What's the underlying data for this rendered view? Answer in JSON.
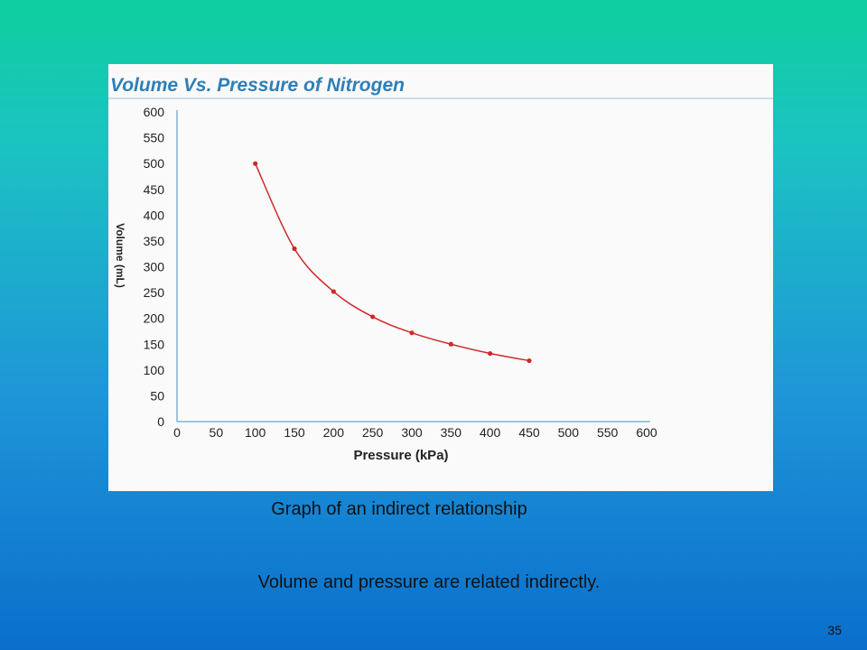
{
  "slide": {
    "caption": "Graph of an indirect relationship",
    "statement": "Volume and pressure are related indirectly.",
    "page_number": "35"
  },
  "chart_data": {
    "type": "line",
    "title": "Volume Vs. Pressure of Nitrogen",
    "xlabel": "Pressure (kPa)",
    "ylabel": "Volume (mL)",
    "xlim": [
      0,
      600
    ],
    "ylim": [
      0,
      600
    ],
    "x_ticks": [
      0,
      50,
      100,
      150,
      200,
      250,
      300,
      350,
      400,
      450,
      500,
      550,
      600
    ],
    "y_ticks": [
      0,
      50,
      100,
      150,
      200,
      250,
      300,
      350,
      400,
      450,
      500,
      550,
      600
    ],
    "grid": false,
    "series": [
      {
        "x": [
          100,
          150,
          200,
          250,
          300,
          350,
          400,
          450
        ],
        "y": [
          500,
          335,
          252,
          203,
          172,
          150,
          132,
          118
        ],
        "color": "#d02828"
      }
    ]
  }
}
